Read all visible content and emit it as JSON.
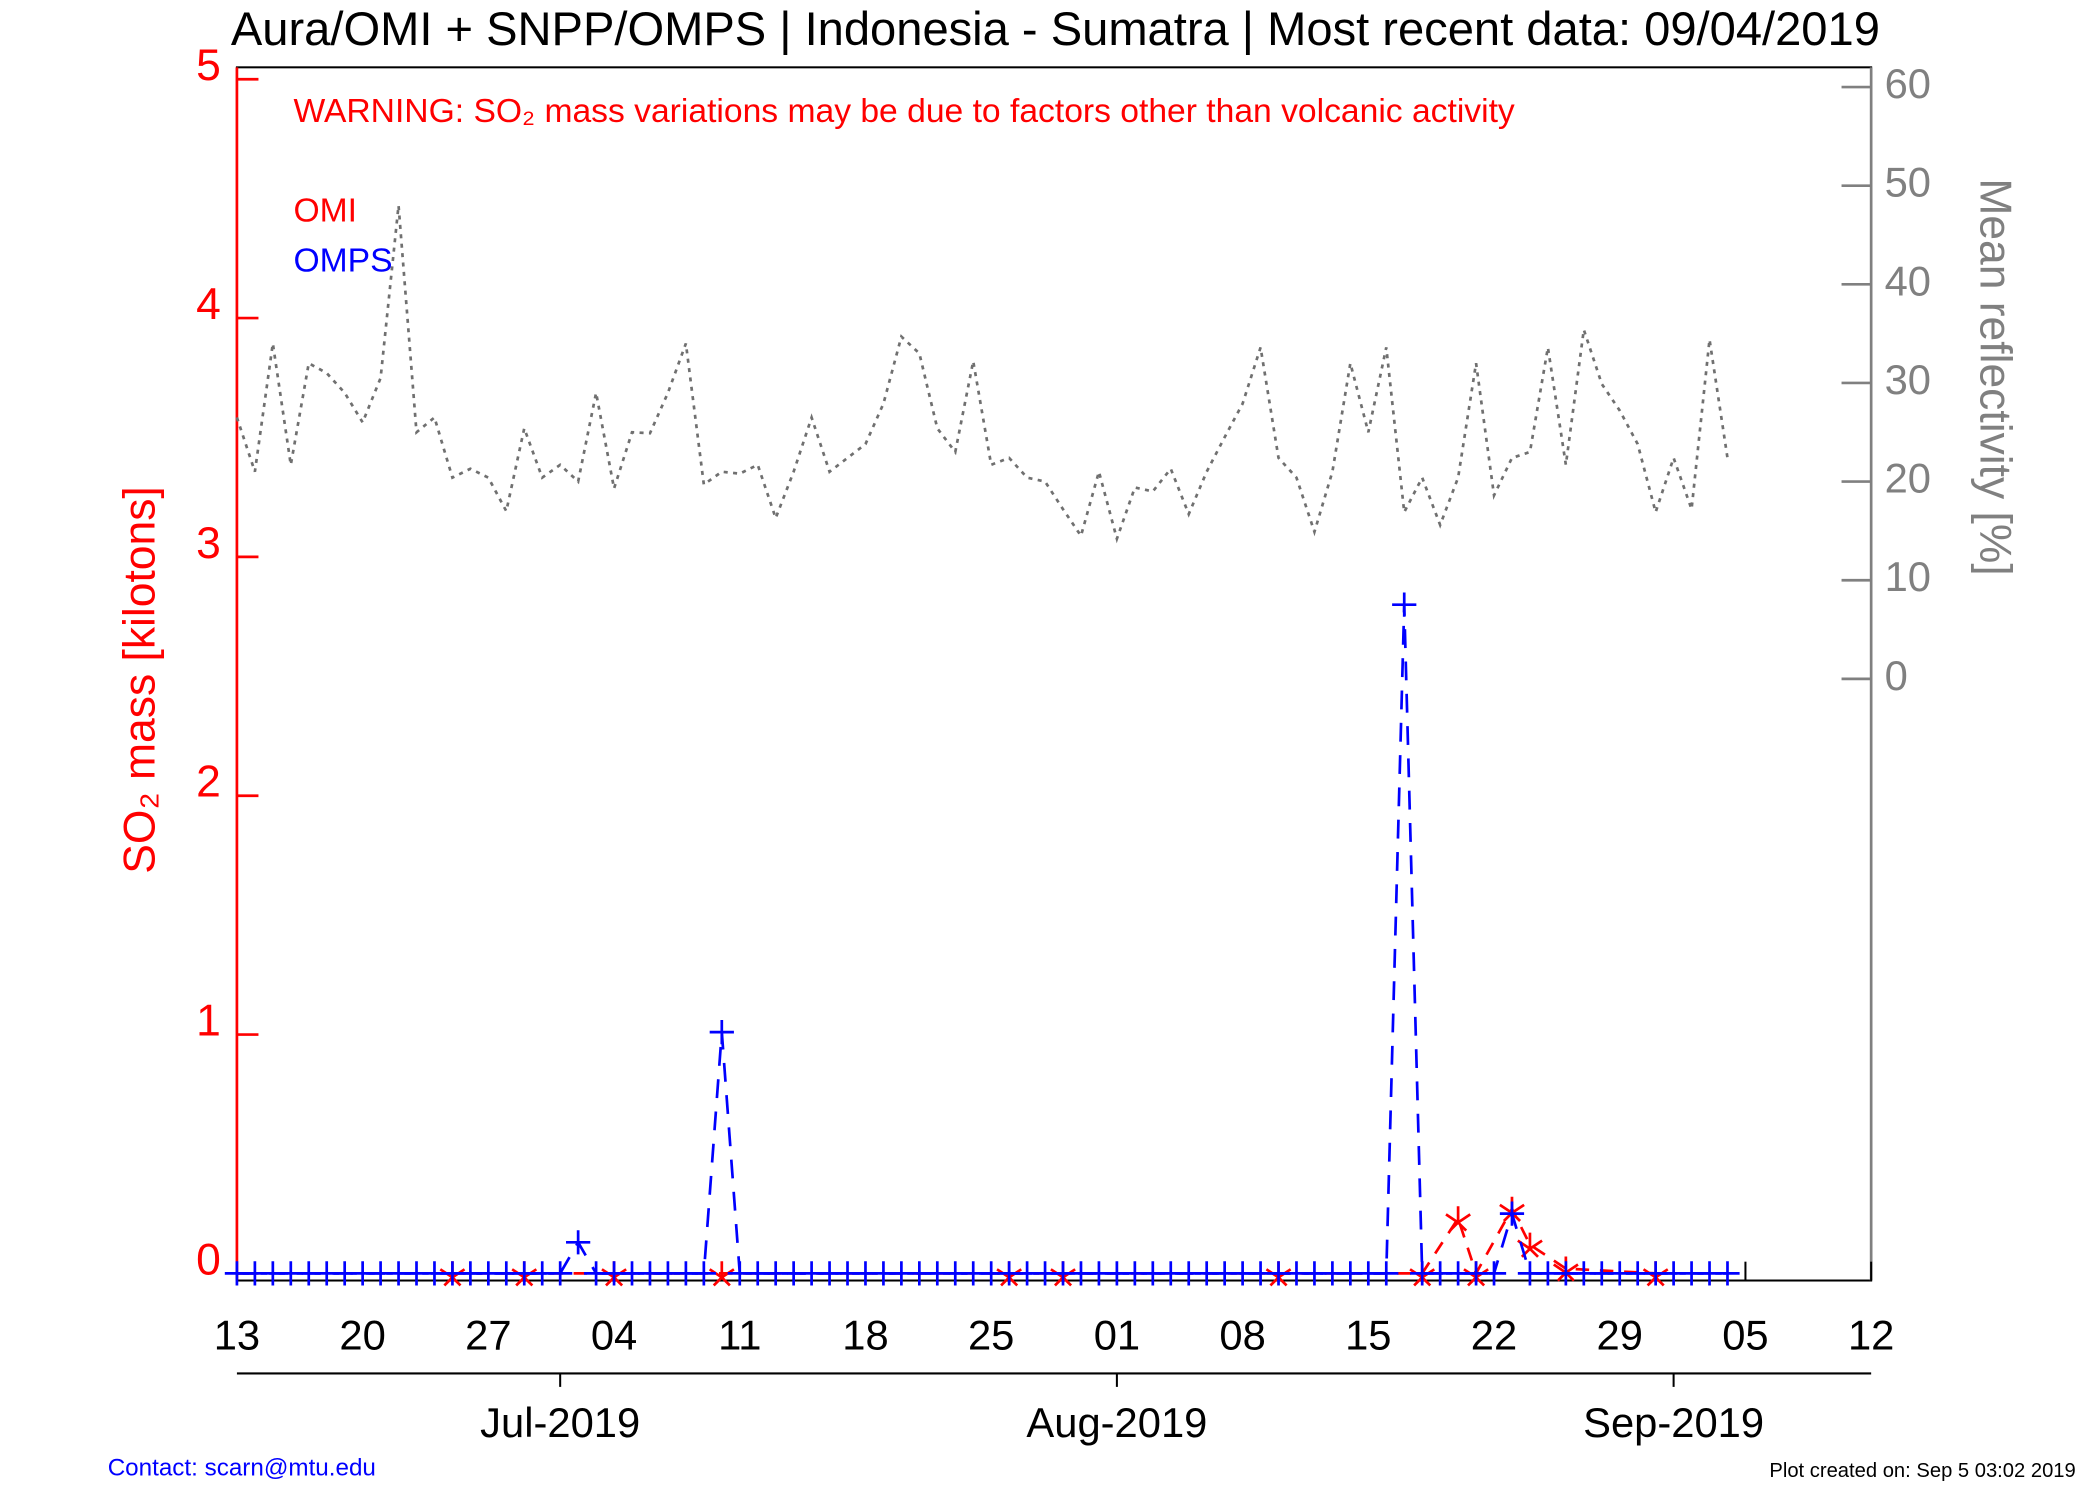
{
  "chart_data": {
    "type": "line",
    "title": "Aura/OMI + SNPP/OMPS | Indonesia - Sumatra | Most recent data: 09/04/2019",
    "annotation": "WARNING: SO₂ mass variations may be due to factors other than volcanic activity",
    "ylabel": "SO₂ mass [kilotons]",
    "y2label": "Mean reflectivity [%]",
    "footer_left": "Contact: scarn@mtu.edu",
    "footer_right": "Plot created on: Sep  5 03:02 2019",
    "xlim": [
      "2019-06-13",
      "2019-09-12"
    ],
    "xticks": [
      {
        "value": "2019-06-13",
        "label": "13"
      },
      {
        "value": "2019-06-20",
        "label": "20"
      },
      {
        "value": "2019-06-27",
        "label": "27"
      },
      {
        "value": "2019-07-04",
        "label": "04"
      },
      {
        "value": "2019-07-11",
        "label": "11"
      },
      {
        "value": "2019-07-18",
        "label": "18"
      },
      {
        "value": "2019-07-25",
        "label": "25"
      },
      {
        "value": "2019-08-01",
        "label": "01"
      },
      {
        "value": "2019-08-08",
        "label": "08"
      },
      {
        "value": "2019-08-15",
        "label": "15"
      },
      {
        "value": "2019-08-22",
        "label": "22"
      },
      {
        "value": "2019-08-29",
        "label": "29"
      },
      {
        "value": "2019-09-05",
        "label": "05"
      },
      {
        "value": "2019-09-12",
        "label": "12"
      }
    ],
    "month_ticks": [
      {
        "value": "2019-07-01",
        "label": "Jul-2019"
      },
      {
        "value": "2019-08-01",
        "label": "Aug-2019"
      },
      {
        "value": "2019-09-01",
        "label": "Sep-2019"
      }
    ],
    "ylim": [
      -0.03,
      5.05
    ],
    "yticks": [
      0,
      1,
      2,
      3,
      4,
      5
    ],
    "y2lim": [
      -61,
      62
    ],
    "y2ticks": [
      0,
      10,
      20,
      30,
      40,
      50,
      60
    ],
    "x": [
      "2019-06-13",
      "2019-06-14",
      "2019-06-15",
      "2019-06-16",
      "2019-06-17",
      "2019-06-18",
      "2019-06-19",
      "2019-06-20",
      "2019-06-21",
      "2019-06-22",
      "2019-06-23",
      "2019-06-24",
      "2019-06-25",
      "2019-06-26",
      "2019-06-27",
      "2019-06-28",
      "2019-06-29",
      "2019-06-30",
      "2019-07-01",
      "2019-07-02",
      "2019-07-03",
      "2019-07-04",
      "2019-07-05",
      "2019-07-06",
      "2019-07-07",
      "2019-07-08",
      "2019-07-09",
      "2019-07-10",
      "2019-07-11",
      "2019-07-12",
      "2019-07-13",
      "2019-07-14",
      "2019-07-15",
      "2019-07-16",
      "2019-07-17",
      "2019-07-18",
      "2019-07-19",
      "2019-07-20",
      "2019-07-21",
      "2019-07-22",
      "2019-07-23",
      "2019-07-24",
      "2019-07-25",
      "2019-07-26",
      "2019-07-27",
      "2019-07-28",
      "2019-07-29",
      "2019-07-30",
      "2019-07-31",
      "2019-08-01",
      "2019-08-02",
      "2019-08-03",
      "2019-08-04",
      "2019-08-05",
      "2019-08-06",
      "2019-08-07",
      "2019-08-08",
      "2019-08-09",
      "2019-08-10",
      "2019-08-11",
      "2019-08-12",
      "2019-08-13",
      "2019-08-14",
      "2019-08-15",
      "2019-08-16",
      "2019-08-17",
      "2019-08-18",
      "2019-08-19",
      "2019-08-20",
      "2019-08-21",
      "2019-08-22",
      "2019-08-23",
      "2019-08-24",
      "2019-08-25",
      "2019-08-26",
      "2019-08-27",
      "2019-08-28",
      "2019-08-29",
      "2019-08-30",
      "2019-08-31",
      "2019-09-01",
      "2019-09-02",
      "2019-09-03",
      "2019-09-04"
    ],
    "series": [
      {
        "name": "OMI",
        "color": "#ff0000",
        "dash": "10,8",
        "marker": "star",
        "x": [
          "2019-06-25",
          "2019-06-29",
          "2019-07-04",
          "2019-07-10",
          "2019-07-26",
          "2019-07-29",
          "2019-08-10",
          "2019-08-18",
          "2019-08-20",
          "2019-08-21",
          "2019-08-23",
          "2019-08-24",
          "2019-08-26",
          "2019-08-31"
        ],
        "values": [
          0,
          0,
          0,
          0,
          0,
          0,
          0,
          0,
          0.23,
          0,
          0.27,
          0.12,
          0.02,
          0
        ]
      },
      {
        "name": "OMPS",
        "color": "#0000ff",
        "dash": "14,10",
        "marker": "plus",
        "values": [
          0,
          0,
          0,
          0,
          0,
          0,
          0,
          0,
          0,
          0,
          0,
          0,
          0,
          0,
          0,
          0,
          0,
          0,
          0,
          0.13,
          0,
          0,
          0,
          0,
          0,
          0,
          0,
          1.01,
          0,
          0,
          0,
          0,
          0,
          0,
          0,
          0,
          0,
          0,
          0,
          0,
          0,
          0,
          0,
          0,
          0,
          0,
          0,
          0,
          0,
          0,
          0,
          0,
          0,
          0,
          0,
          0,
          0,
          0,
          0,
          0,
          0,
          0,
          0,
          0,
          0,
          2.8,
          0,
          0,
          0,
          0,
          0,
          0.25,
          0,
          0,
          0,
          0,
          0,
          0,
          0,
          0,
          0,
          0,
          0,
          0
        ]
      },
      {
        "color": "#707070",
        "dash": "3,4",
        "axis": "y2",
        "values": [
          26.5,
          21,
          34,
          21.7,
          32,
          31,
          29,
          26,
          30.5,
          48,
          25,
          26.5,
          20.4,
          21.3,
          20.4,
          17,
          25.4,
          20.4,
          21.7,
          20,
          29,
          19.3,
          25,
          24.9,
          29,
          34,
          19.7,
          21,
          20.8,
          21.7,
          16.3,
          21,
          26.5,
          21,
          22.4,
          23.8,
          27.9,
          34.7,
          33,
          25.4,
          23,
          32.2,
          21.7,
          22.4,
          20.4,
          20,
          17.2,
          14.5,
          21,
          14.2,
          19.4,
          19,
          21.3,
          16.7,
          21,
          24.5,
          27.9,
          33.6,
          22.4,
          20.4,
          14.9,
          21,
          32,
          25,
          33.6,
          16.9,
          20.4,
          15.6,
          20.4,
          32,
          18.6,
          22.4,
          23,
          33.6,
          21.7,
          35.4,
          29.9,
          27.2,
          23.8,
          16.9,
          22.4,
          17.2,
          34.4,
          22.4
        ]
      }
    ]
  }
}
